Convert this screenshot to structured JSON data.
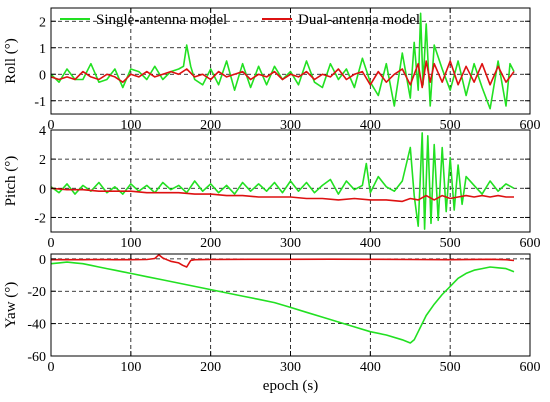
{
  "legend": {
    "placement": "top",
    "entries": [
      {
        "label": "Single-antenna model",
        "color": "#22e022"
      },
      {
        "label": "Dual-antenna model",
        "color": "#dd1111"
      }
    ]
  },
  "chart_data": [
    {
      "type": "line",
      "ylabel": "Roll (°)",
      "xlim": [
        0,
        600
      ],
      "ylim": [
        -1.5,
        2.5
      ],
      "yticks": [
        -1,
        0,
        1,
        2
      ],
      "xticks": [
        0,
        100,
        200,
        300,
        400,
        500,
        600
      ],
      "grid": true,
      "series": [
        {
          "name": "Single-antenna model",
          "color": "#22e022",
          "x": [
            0,
            10,
            20,
            30,
            40,
            50,
            60,
            70,
            80,
            90,
            100,
            110,
            120,
            130,
            140,
            150,
            160,
            166,
            170,
            175,
            180,
            190,
            200,
            210,
            220,
            230,
            240,
            250,
            260,
            270,
            280,
            290,
            300,
            310,
            320,
            330,
            340,
            350,
            360,
            370,
            380,
            390,
            400,
            410,
            420,
            430,
            440,
            450,
            455,
            460,
            463,
            466,
            470,
            475,
            480,
            490,
            500,
            510,
            520,
            530,
            540,
            550,
            560,
            570,
            575,
            580
          ],
          "y": [
            0.0,
            -0.3,
            0.2,
            -0.2,
            -0.2,
            0.4,
            -0.3,
            -0.2,
            0.2,
            -0.5,
            0.2,
            0.1,
            -0.2,
            0.3,
            -0.2,
            0.1,
            0.2,
            0.3,
            1.1,
            0.3,
            -0.2,
            -0.4,
            0.2,
            -0.4,
            0.5,
            -0.6,
            0.4,
            -0.5,
            0.3,
            -0.4,
            0.3,
            -0.2,
            0.1,
            -0.4,
            0.5,
            -0.3,
            -0.5,
            0.4,
            -0.2,
            0.2,
            -0.5,
            0.6,
            -0.3,
            -0.8,
            0.4,
            -1.2,
            0.8,
            -0.9,
            1.2,
            -0.6,
            2.3,
            -0.4,
            1.9,
            -1.2,
            1.1,
            0.2,
            -0.6,
            0.5,
            -0.8,
            0.4,
            -0.5,
            -1.3,
            0.5,
            -1.2,
            0.4,
            0.1
          ]
        },
        {
          "name": "Dual-antenna model",
          "color": "#dd1111",
          "x": [
            0,
            10,
            20,
            30,
            40,
            50,
            60,
            70,
            80,
            90,
            100,
            110,
            120,
            130,
            140,
            150,
            160,
            170,
            180,
            190,
            200,
            210,
            220,
            230,
            240,
            250,
            260,
            270,
            280,
            290,
            300,
            310,
            320,
            330,
            340,
            350,
            360,
            370,
            380,
            390,
            400,
            410,
            420,
            430,
            440,
            450,
            460,
            465,
            470,
            475,
            480,
            490,
            500,
            510,
            520,
            530,
            540,
            550,
            560,
            570,
            580
          ],
          "y": [
            -0.1,
            -0.2,
            -0.1,
            -0.2,
            0.1,
            -0.1,
            -0.2,
            0.0,
            -0.1,
            -0.3,
            0.0,
            -0.1,
            0.1,
            -0.1,
            0.0,
            0.1,
            0.0,
            0.2,
            -0.1,
            0.0,
            -0.2,
            0.1,
            -0.1,
            0.0,
            0.1,
            -0.2,
            0.0,
            -0.1,
            0.1,
            -0.2,
            0.0,
            -0.1,
            0.1,
            -0.2,
            0.0,
            -0.1,
            0.2,
            -0.2,
            0.0,
            0.1,
            -0.4,
            0.1,
            -0.3,
            0.0,
            0.2,
            -0.4,
            0.4,
            -0.5,
            0.5,
            -0.3,
            0.4,
            -0.3,
            0.5,
            -0.4,
            0.3,
            -0.3,
            0.4,
            -0.4,
            0.3,
            -0.3,
            0.1
          ]
        }
      ]
    },
    {
      "type": "line",
      "ylabel": "Pitch (°)",
      "xlim": [
        0,
        600
      ],
      "ylim": [
        -3,
        4
      ],
      "yticks": [
        -2,
        0,
        2,
        4
      ],
      "xticks": [
        0,
        100,
        200,
        300,
        400,
        500,
        600
      ],
      "grid": true,
      "series": [
        {
          "name": "Single-antenna model",
          "color": "#22e022",
          "x": [
            0,
            10,
            20,
            30,
            40,
            50,
            60,
            70,
            80,
            90,
            100,
            110,
            120,
            130,
            140,
            150,
            160,
            170,
            180,
            190,
            200,
            210,
            220,
            230,
            240,
            250,
            260,
            270,
            280,
            290,
            300,
            310,
            320,
            330,
            340,
            350,
            360,
            370,
            380,
            390,
            395,
            400,
            410,
            420,
            430,
            440,
            450,
            455,
            460,
            465,
            468,
            472,
            476,
            480,
            485,
            490,
            495,
            500,
            505,
            510,
            515,
            520,
            530,
            540,
            550,
            560,
            570,
            580
          ],
          "y": [
            0.1,
            -0.3,
            0.3,
            -0.4,
            0.2,
            -0.2,
            0.4,
            -0.3,
            0.1,
            -0.4,
            0.3,
            -0.2,
            0.2,
            -0.3,
            0.4,
            -0.1,
            0.2,
            -0.3,
            0.5,
            -0.2,
            0.3,
            -0.3,
            0.2,
            -0.4,
            0.4,
            -0.2,
            0.3,
            -0.2,
            0.4,
            -0.3,
            0.5,
            -0.2,
            0.4,
            -0.3,
            0.2,
            0.6,
            -0.4,
            0.5,
            -0.1,
            0.2,
            1.7,
            -0.3,
            0.8,
            0.1,
            -0.2,
            0.5,
            2.8,
            -0.5,
            -2.6,
            3.8,
            -2.8,
            3.6,
            -2.4,
            3.0,
            -2.2,
            2.8,
            -1.6,
            2.1,
            -1.5,
            1.6,
            -1.1,
            0.8,
            0.2,
            -0.4,
            0.5,
            -0.2,
            0.3,
            0.0
          ]
        },
        {
          "name": "Dual-antenna model",
          "color": "#dd1111",
          "x": [
            0,
            20,
            40,
            60,
            80,
            100,
            120,
            140,
            160,
            180,
            200,
            220,
            240,
            260,
            280,
            300,
            320,
            340,
            360,
            380,
            400,
            420,
            440,
            450,
            460,
            470,
            480,
            490,
            500,
            510,
            520,
            530,
            540,
            550,
            560,
            570,
            580
          ],
          "y": [
            0.0,
            -0.1,
            -0.1,
            -0.2,
            -0.2,
            -0.2,
            -0.3,
            -0.3,
            -0.3,
            -0.4,
            -0.4,
            -0.5,
            -0.5,
            -0.6,
            -0.6,
            -0.6,
            -0.7,
            -0.7,
            -0.8,
            -0.7,
            -0.8,
            -0.8,
            -0.9,
            -0.7,
            -0.8,
            -0.5,
            -0.8,
            -0.5,
            -0.7,
            -0.6,
            -0.5,
            -0.6,
            -0.5,
            -0.6,
            -0.5,
            -0.6,
            -0.6
          ]
        }
      ]
    },
    {
      "type": "line",
      "ylabel": "Yaw (°)",
      "xlabel": "epoch (s)",
      "xlim": [
        0,
        600
      ],
      "ylim": [
        -60,
        3
      ],
      "yticks": [
        -60,
        -40,
        -20,
        0
      ],
      "xticks": [
        0,
        100,
        200,
        300,
        400,
        500,
        600
      ],
      "grid": true,
      "series": [
        {
          "name": "Single-antenna model",
          "color": "#22e022",
          "x": [
            0,
            10,
            20,
            30,
            40,
            50,
            60,
            70,
            80,
            90,
            100,
            120,
            140,
            160,
            180,
            200,
            220,
            240,
            260,
            280,
            300,
            320,
            340,
            360,
            380,
            400,
            420,
            440,
            450,
            455,
            460,
            465,
            470,
            480,
            490,
            500,
            510,
            520,
            530,
            540,
            550,
            560,
            570,
            580
          ],
          "y": [
            -3,
            -2.5,
            -2,
            -2.5,
            -3,
            -4,
            -5,
            -6,
            -7,
            -8,
            -9,
            -11,
            -13,
            -15,
            -17,
            -19,
            -21,
            -23,
            -25,
            -27,
            -30,
            -33,
            -36,
            -39,
            -42,
            -45,
            -47,
            -50,
            -52,
            -50,
            -45,
            -40,
            -35,
            -28,
            -22,
            -17,
            -12,
            -9,
            -7,
            -6,
            -5,
            -5.5,
            -6,
            -8
          ]
        },
        {
          "name": "Dual-antenna model",
          "color": "#dd1111",
          "x": [
            0,
            20,
            40,
            60,
            80,
            100,
            120,
            130,
            135,
            140,
            145,
            150,
            160,
            165,
            170,
            175,
            180,
            200,
            250,
            300,
            350,
            400,
            450,
            500,
            550,
            570,
            580
          ],
          "y": [
            -0.5,
            -0.5,
            -0.5,
            -0.4,
            -0.5,
            -0.5,
            -0.4,
            0.2,
            2.5,
            0.5,
            -0.5,
            -1.5,
            -2.5,
            -4,
            -5,
            -1,
            -0.5,
            -0.4,
            -0.3,
            -0.3,
            -0.2,
            -0.3,
            -0.4,
            -0.5,
            -0.3,
            -0.5,
            -1
          ]
        }
      ]
    }
  ]
}
